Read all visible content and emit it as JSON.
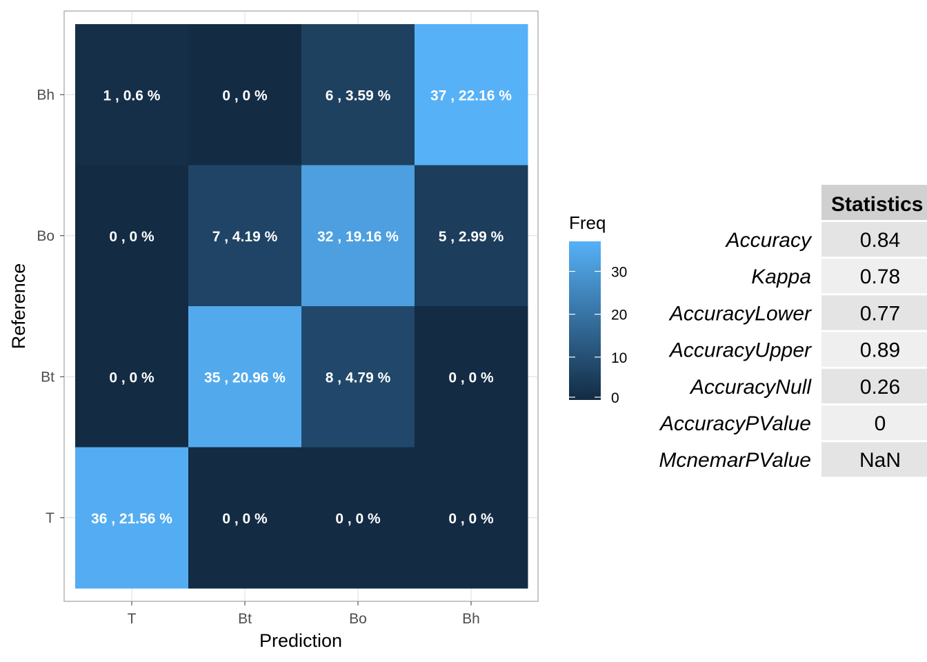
{
  "chart_data": {
    "type": "heatmap",
    "x_categories": [
      "T",
      "Bt",
      "Bo",
      "Bh"
    ],
    "y_categories": [
      "Bh",
      "Bo",
      "Bt",
      "T"
    ],
    "xlabel": "Prediction",
    "ylabel": "Reference",
    "cells": [
      {
        "reference": "Bh",
        "prediction": "T",
        "freq": 1,
        "label": "1 , 0.6 %"
      },
      {
        "reference": "Bh",
        "prediction": "Bt",
        "freq": 0,
        "label": "0 , 0 %"
      },
      {
        "reference": "Bh",
        "prediction": "Bo",
        "freq": 6,
        "label": "6 , 3.59 %"
      },
      {
        "reference": "Bh",
        "prediction": "Bh",
        "freq": 37,
        "label": "37 , 22.16 %"
      },
      {
        "reference": "Bo",
        "prediction": "T",
        "freq": 0,
        "label": "0 , 0 %"
      },
      {
        "reference": "Bo",
        "prediction": "Bt",
        "freq": 7,
        "label": "7 , 4.19 %"
      },
      {
        "reference": "Bo",
        "prediction": "Bo",
        "freq": 32,
        "label": "32 , 19.16 %"
      },
      {
        "reference": "Bo",
        "prediction": "Bh",
        "freq": 5,
        "label": "5 , 2.99 %"
      },
      {
        "reference": "Bt",
        "prediction": "T",
        "freq": 0,
        "label": "0 , 0 %"
      },
      {
        "reference": "Bt",
        "prediction": "Bt",
        "freq": 35,
        "label": "35 , 20.96 %"
      },
      {
        "reference": "Bt",
        "prediction": "Bo",
        "freq": 8,
        "label": "8 , 4.79 %"
      },
      {
        "reference": "Bt",
        "prediction": "Bh",
        "freq": 0,
        "label": "0 , 0 %"
      },
      {
        "reference": "T",
        "prediction": "T",
        "freq": 36,
        "label": "36 , 21.56 %"
      },
      {
        "reference": "T",
        "prediction": "Bt",
        "freq": 0,
        "label": "0 , 0 %"
      },
      {
        "reference": "T",
        "prediction": "Bo",
        "freq": 0,
        "label": "0 , 0 %"
      },
      {
        "reference": "T",
        "prediction": "Bh",
        "freq": 0,
        "label": "0 , 0 %"
      }
    ],
    "legend": {
      "title": "Freq",
      "ticks": [
        0,
        10,
        20,
        30
      ],
      "range": [
        0,
        37
      ],
      "color_low": "#132B43",
      "color_high": "#56B1F7",
      "placement": "right"
    },
    "grid": true
  },
  "statistics": {
    "header": "Statistics",
    "rows": [
      {
        "label": "Accuracy",
        "value": "0.84"
      },
      {
        "label": "Kappa",
        "value": "0.78"
      },
      {
        "label": "AccuracyLower",
        "value": "0.77"
      },
      {
        "label": "AccuracyUpper",
        "value": "0.89"
      },
      {
        "label": "AccuracyNull",
        "value": "0.26"
      },
      {
        "label": "AccuracyPValue",
        "value": "0"
      },
      {
        "label": "McnemarPValue",
        "value": "NaN"
      }
    ]
  }
}
